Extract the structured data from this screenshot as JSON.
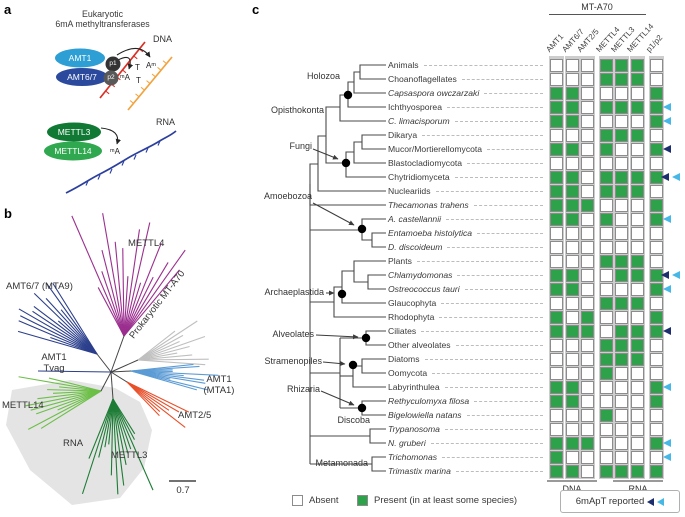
{
  "figure": {
    "panel_a_letter": "a",
    "panel_b_letter": "b",
    "panel_c_letter": "c"
  },
  "panel_a": {
    "title_line1": "Eukaryotic",
    "title_line2": "6mA methyltransferases",
    "dna_label": "DNA",
    "rna_label": "RNA",
    "complex_dna": {
      "amt1": "AMT1",
      "amt67": "AMT6/7",
      "p1": "p1",
      "p2": "p2"
    },
    "complex_rna": {
      "mettl3": "METTL3",
      "mettl14": "METTL14"
    },
    "bases": {
      "t_upper": "T",
      "am_upper": "Aᵐ",
      "ma_lower": "ᵐA",
      "t_lower": "T",
      "rna_ma": "ᵐA"
    }
  },
  "panel_b": {
    "labels": {
      "mettl4": "METTL4",
      "amt67": "AMT6/7 (MTA9)",
      "prokaryotic": "Prokaryotic MT-A70",
      "amt1_tvag_line1": "AMT1",
      "amt1_tvag_line2": "Tvag",
      "amt1_mta1_line1": "AMT1",
      "amt1_mta1_line2": "(MTA1)",
      "amt25": "AMT2/5",
      "mettl14": "METTL14",
      "mettl3": "METTL3",
      "rna_shade": "RNA",
      "scale": "0.7"
    },
    "colors": {
      "mettl4": "#9b2f8f",
      "amt67": "#2b3f8c",
      "prokaryotic": "#bfbfbf",
      "amt1": "#5b9bd5",
      "amt25": "#e8502a",
      "mettl14": "#6cbf47",
      "mettl3": "#1d7c35"
    }
  },
  "panel_c": {
    "header_group": "MT-A70",
    "columns": [
      "AMT1",
      "AMT6/7",
      "AMT2/5",
      "METTL4",
      "METTL3",
      "METTL14",
      "p1/p2"
    ],
    "clades": [
      "Holozoa",
      "Opisthokonta",
      "Fungi",
      "Amoebozoa",
      "Archaeplastida",
      "Alveolates",
      "Stramenopiles",
      "Rhizaria",
      "Discoba",
      "Metamonada"
    ],
    "rows": [
      {
        "name": "Animals",
        "italic": false,
        "cells": [
          0,
          0,
          0,
          1,
          1,
          1,
          0
        ],
        "arrows": []
      },
      {
        "name": "Choanoflagellates",
        "italic": false,
        "cells": [
          0,
          0,
          0,
          1,
          1,
          1,
          0
        ],
        "arrows": []
      },
      {
        "name": "Capsaspora owczarzaki",
        "italic": true,
        "cells": [
          1,
          1,
          0,
          0,
          0,
          0,
          1
        ],
        "arrows": []
      },
      {
        "name": "Ichthyosporea",
        "italic": false,
        "cells": [
          1,
          1,
          0,
          1,
          1,
          1,
          1
        ],
        "arrows": [
          "cyan"
        ]
      },
      {
        "name": "C. limacisporum",
        "italic": true,
        "cells": [
          1,
          1,
          0,
          0,
          0,
          0,
          1
        ],
        "arrows": [
          "cyan"
        ]
      },
      {
        "name": "Dikarya",
        "italic": false,
        "cells": [
          0,
          0,
          0,
          1,
          1,
          1,
          0
        ],
        "arrows": []
      },
      {
        "name": "Mucor/Mortierellomycota",
        "italic": false,
        "cells": [
          1,
          1,
          0,
          1,
          0,
          0,
          1
        ],
        "arrows": [
          "navy"
        ]
      },
      {
        "name": "Blastocladiomycota",
        "italic": false,
        "cells": [
          0,
          0,
          0,
          0,
          0,
          0,
          0
        ],
        "arrows": []
      },
      {
        "name": "Chytridiomyceta",
        "italic": false,
        "cells": [
          1,
          1,
          0,
          1,
          1,
          1,
          1
        ],
        "arrows": [
          "navy",
          "cyan"
        ]
      },
      {
        "name": "Nucleariids",
        "italic": false,
        "cells": [
          1,
          1,
          0,
          1,
          1,
          1,
          0
        ],
        "arrows": []
      },
      {
        "name": "Thecamonas trahens",
        "italic": true,
        "cells": [
          1,
          1,
          1,
          0,
          0,
          0,
          1
        ],
        "arrows": []
      },
      {
        "name": "A. castellannii",
        "italic": true,
        "cells": [
          1,
          1,
          0,
          1,
          0,
          0,
          1
        ],
        "arrows": [
          "cyan"
        ]
      },
      {
        "name": "Entamoeba histolytica",
        "italic": true,
        "cells": [
          0,
          0,
          0,
          0,
          0,
          0,
          0
        ],
        "arrows": []
      },
      {
        "name": "D. discoideum",
        "italic": true,
        "cells": [
          0,
          0,
          0,
          0,
          0,
          0,
          0
        ],
        "arrows": []
      },
      {
        "name": "Plants",
        "italic": false,
        "cells": [
          0,
          0,
          0,
          1,
          1,
          1,
          0
        ],
        "arrows": []
      },
      {
        "name": "Chlamydomonas",
        "italic": true,
        "cells": [
          1,
          1,
          0,
          0,
          1,
          1,
          1
        ],
        "arrows": [
          "navy",
          "cyan"
        ]
      },
      {
        "name": "Ostreococcus tauri",
        "italic": true,
        "cells": [
          1,
          1,
          0,
          0,
          0,
          0,
          1
        ],
        "arrows": [
          "cyan"
        ]
      },
      {
        "name": "Glaucophyta",
        "italic": false,
        "cells": [
          0,
          0,
          0,
          1,
          1,
          1,
          0
        ],
        "arrows": []
      },
      {
        "name": "Rhodophyta",
        "italic": false,
        "cells": [
          1,
          0,
          1,
          0,
          0,
          0,
          1
        ],
        "arrows": []
      },
      {
        "name": "Ciliates",
        "italic": false,
        "cells": [
          1,
          1,
          1,
          0,
          1,
          1,
          1
        ],
        "arrows": [
          "navy"
        ]
      },
      {
        "name": "Other alveolates",
        "italic": false,
        "cells": [
          0,
          0,
          0,
          1,
          1,
          1,
          0
        ],
        "arrows": []
      },
      {
        "name": "Diatoms",
        "italic": false,
        "cells": [
          0,
          0,
          0,
          1,
          1,
          1,
          0
        ],
        "arrows": []
      },
      {
        "name": "Oomycota",
        "italic": false,
        "cells": [
          0,
          0,
          0,
          1,
          0,
          0,
          0
        ],
        "arrows": []
      },
      {
        "name": "Labyrinthulea",
        "italic": false,
        "cells": [
          1,
          1,
          0,
          0,
          0,
          0,
          1
        ],
        "arrows": [
          "cyan"
        ]
      },
      {
        "name": "Rethyculomyxa filosa",
        "italic": true,
        "cells": [
          1,
          1,
          0,
          0,
          0,
          0,
          1
        ],
        "arrows": []
      },
      {
        "name": "Bigelowiella natans",
        "italic": true,
        "cells": [
          0,
          0,
          0,
          1,
          0,
          0,
          0
        ],
        "arrows": []
      },
      {
        "name": "Trypanosoma",
        "italic": true,
        "cells": [
          0,
          0,
          0,
          0,
          0,
          0,
          0
        ],
        "arrows": []
      },
      {
        "name": "N. gruberi",
        "italic": true,
        "cells": [
          1,
          1,
          1,
          0,
          0,
          0,
          1
        ],
        "arrows": [
          "cyan"
        ]
      },
      {
        "name": "Trichomonas",
        "italic": true,
        "cells": [
          1,
          0,
          0,
          0,
          0,
          0,
          0
        ],
        "arrows": [
          "cyan"
        ]
      },
      {
        "name": "Trimastix marina",
        "italic": true,
        "cells": [
          1,
          1,
          0,
          1,
          1,
          1,
          1
        ],
        "arrows": []
      }
    ],
    "footer": {
      "dna": "DNA",
      "rna": "RNA"
    },
    "legend": {
      "absent": "Absent",
      "present": "Present (in at least some species)",
      "reported": "6mApT reported"
    },
    "colors": {
      "present": "#2da24a",
      "absent": "#ffffff",
      "cyan": "#45b8e8",
      "navy": "#1c2e6e"
    }
  },
  "chart_data": {
    "type": "heatmap",
    "title": "MT-A70",
    "columns": [
      "AMT1",
      "AMT6/7",
      "AMT2/5",
      "METTL4",
      "METTL3",
      "METTL14",
      "p1/p2"
    ],
    "column_groups": {
      "DNA": [
        "AMT1",
        "AMT6/7",
        "AMT2/5"
      ],
      "RNA": [
        "METTL3",
        "METTL14",
        "p1/p2"
      ]
    },
    "rows": [
      "Animals",
      "Choanoflagellates",
      "Capsaspora owczarzaki",
      "Ichthyosporea",
      "C. limacisporum",
      "Dikarya",
      "Mucor/Mortierellomycota",
      "Blastocladiomycota",
      "Chytridiomyceta",
      "Nucleariids",
      "Thecamonas trahens",
      "A. castellannii",
      "Entamoeba histolytica",
      "D. discoideum",
      "Plants",
      "Chlamydomonas",
      "Ostreococcus tauri",
      "Glaucophyta",
      "Rhodophyta",
      "Ciliates",
      "Other alveolates",
      "Diatoms",
      "Oomycota",
      "Labyrinthulea",
      "Rethyculomyxa filosa",
      "Bigelowiella natans",
      "Trypanosoma",
      "N. gruberi",
      "Trichomonas",
      "Trimastix marina"
    ],
    "values": [
      [
        0,
        0,
        0,
        1,
        1,
        1,
        0
      ],
      [
        0,
        0,
        0,
        1,
        1,
        1,
        0
      ],
      [
        1,
        1,
        0,
        0,
        0,
        0,
        1
      ],
      [
        1,
        1,
        0,
        1,
        1,
        1,
        1
      ],
      [
        1,
        1,
        0,
        0,
        0,
        0,
        1
      ],
      [
        0,
        0,
        0,
        1,
        1,
        1,
        0
      ],
      [
        1,
        1,
        0,
        1,
        0,
        0,
        1
      ],
      [
        0,
        0,
        0,
        0,
        0,
        0,
        0
      ],
      [
        1,
        1,
        0,
        1,
        1,
        1,
        1
      ],
      [
        1,
        1,
        0,
        1,
        1,
        1,
        0
      ],
      [
        1,
        1,
        1,
        0,
        0,
        0,
        1
      ],
      [
        1,
        1,
        0,
        1,
        0,
        0,
        1
      ],
      [
        0,
        0,
        0,
        0,
        0,
        0,
        0
      ],
      [
        0,
        0,
        0,
        0,
        0,
        0,
        0
      ],
      [
        0,
        0,
        0,
        1,
        1,
        1,
        0
      ],
      [
        1,
        1,
        0,
        0,
        1,
        1,
        1
      ],
      [
        1,
        1,
        0,
        0,
        0,
        0,
        1
      ],
      [
        0,
        0,
        0,
        1,
        1,
        1,
        0
      ],
      [
        1,
        0,
        1,
        0,
        0,
        0,
        1
      ],
      [
        1,
        1,
        1,
        0,
        1,
        1,
        1
      ],
      [
        0,
        0,
        0,
        1,
        1,
        1,
        0
      ],
      [
        0,
        0,
        0,
        1,
        1,
        1,
        0
      ],
      [
        0,
        0,
        0,
        1,
        0,
        0,
        0
      ],
      [
        1,
        1,
        0,
        0,
        0,
        0,
        1
      ],
      [
        1,
        1,
        0,
        0,
        0,
        0,
        1
      ],
      [
        0,
        0,
        0,
        1,
        0,
        0,
        0
      ],
      [
        0,
        0,
        0,
        0,
        0,
        0,
        0
      ],
      [
        1,
        1,
        1,
        0,
        0,
        0,
        1
      ],
      [
        1,
        0,
        0,
        0,
        0,
        0,
        0
      ],
      [
        1,
        1,
        0,
        1,
        1,
        1,
        1
      ]
    ],
    "value_legend": {
      "0": "Absent",
      "1": "Present (in at least some species)"
    },
    "annotations_6mApT_reported": {
      "navy_arrow_rows": [
        "Mucor/Mortierellomycota",
        "Chytridiomyceta",
        "Chlamydomonas",
        "Ciliates"
      ],
      "cyan_arrow_rows": [
        "Ichthyosporea",
        "C. limacisporum",
        "Chytridiomyceta",
        "A. castellannii",
        "Chlamydomonas",
        "Ostreococcus tauri",
        "Labyrinthulea",
        "N. gruberi",
        "Trichomonas"
      ]
    }
  }
}
